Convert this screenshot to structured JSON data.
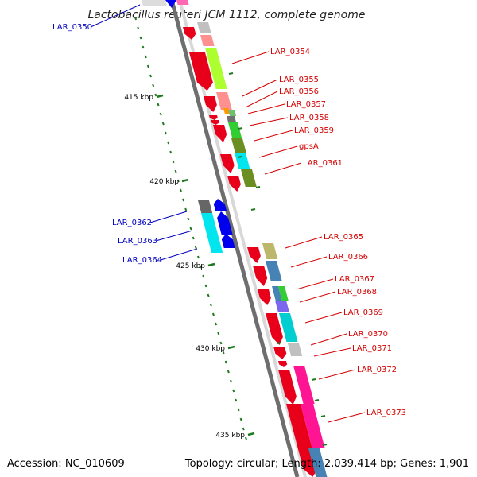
{
  "title": "Lactobacillus reuteri JCM 1112, complete genome",
  "accession": "Accession: NC_010609",
  "summary": "Topology: circular; Length: 2,039,414 bp; Genes: 1,901",
  "colors": {
    "gene_forward": "#e8001a",
    "label_forward": "#d40000",
    "label_reverse": "#0000c0",
    "gene_reverse": "#0000ee",
    "backbone": "#8a8a8a",
    "ticks": "#1f7a1f"
  },
  "scale_labels": [
    "415 kbp",
    "420 kbp",
    "425 kbp",
    "430 kbp",
    "435 kbp"
  ],
  "gene_labels": [
    {
      "text": "LAR_0350",
      "strand": "reverse"
    },
    {
      "text": "LAR_0354",
      "strand": "forward"
    },
    {
      "text": "LAR_0355",
      "strand": "forward"
    },
    {
      "text": "LAR_0356",
      "strand": "forward"
    },
    {
      "text": "LAR_0357",
      "strand": "forward"
    },
    {
      "text": "LAR_0358",
      "strand": "forward"
    },
    {
      "text": "LAR_0359",
      "strand": "forward"
    },
    {
      "text": "gpsA",
      "strand": "forward"
    },
    {
      "text": "LAR_0361",
      "strand": "forward"
    },
    {
      "text": "LAR_0362",
      "strand": "reverse"
    },
    {
      "text": "LAR_0363",
      "strand": "reverse"
    },
    {
      "text": "LAR_0364",
      "strand": "reverse"
    },
    {
      "text": "LAR_0365",
      "strand": "forward"
    },
    {
      "text": "LAR_0366",
      "strand": "forward"
    },
    {
      "text": "LAR_0367",
      "strand": "forward"
    },
    {
      "text": "LAR_0368",
      "strand": "forward"
    },
    {
      "text": "LAR_0369",
      "strand": "forward"
    },
    {
      "text": "LAR_0370",
      "strand": "forward"
    },
    {
      "text": "LAR_0371",
      "strand": "forward"
    },
    {
      "text": "LAR_0372",
      "strand": "forward"
    },
    {
      "text": "LAR_0373",
      "strand": "forward"
    }
  ]
}
